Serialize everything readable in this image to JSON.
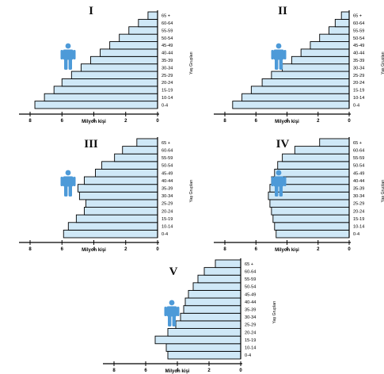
{
  "age_groups": [
    "0-4",
    "10-14",
    "15-19",
    "20-24",
    "25-29",
    "30-34",
    "35-39",
    "40-44",
    "45-49",
    "50-54",
    "55-59",
    "60-64",
    "65 +"
  ],
  "x_ticks": [
    "8",
    "6",
    "4",
    "2",
    "0"
  ],
  "xlabel": "Milyon kişi",
  "ylabel": "Yaş Grupları",
  "bar_color": "#cfe8f7",
  "icon_color": "#4d9ad8",
  "chart_data": [
    {
      "type": "bar",
      "title": "I",
      "orientation": "horizontal",
      "xlim": [
        0,
        8
      ],
      "categories": [
        "0-4",
        "10-14",
        "15-19",
        "20-24",
        "25-29",
        "30-34",
        "35-39",
        "40-44",
        "45-49",
        "50-54",
        "55-59",
        "60-64",
        "65 +"
      ],
      "values": [
        7.7,
        7.1,
        6.5,
        6.0,
        5.4,
        4.8,
        4.2,
        3.6,
        3.0,
        2.4,
        1.8,
        1.2,
        0.6
      ]
    },
    {
      "type": "bar",
      "title": "II",
      "orientation": "horizontal",
      "xlim": [
        0,
        8
      ],
      "categories": [
        "0-4",
        "10-14",
        "15-19",
        "20-24",
        "25-29",
        "30-34",
        "35-39",
        "40-44",
        "45-49",
        "50-54",
        "55-59",
        "60-64",
        "65 +"
      ],
      "values": [
        7.5,
        6.9,
        6.3,
        5.6,
        5.0,
        4.3,
        3.7,
        3.1,
        2.5,
        1.9,
        1.3,
        0.9,
        0.5
      ]
    },
    {
      "type": "bar",
      "title": "III",
      "orientation": "horizontal",
      "xlim": [
        0,
        8
      ],
      "categories": [
        "0-4",
        "10-14",
        "15-19",
        "20-24",
        "25-29",
        "30-34",
        "35-39",
        "40-44",
        "45-49",
        "50-54",
        "55-59",
        "60-64",
        "65 +"
      ],
      "values": [
        5.9,
        5.6,
        5.1,
        4.6,
        4.5,
        4.9,
        5.0,
        4.6,
        3.9,
        3.5,
        2.7,
        2.2,
        1.3
      ]
    },
    {
      "type": "bar",
      "title": "IV",
      "orientation": "horizontal",
      "xlim": [
        0,
        8
      ],
      "categories": [
        "0-4",
        "10-14",
        "15-19",
        "20-24",
        "25-29",
        "30-34",
        "35-39",
        "40-44",
        "45-49",
        "50-54",
        "55-59",
        "60-64",
        "65 +"
      ],
      "values": [
        4.7,
        4.8,
        4.9,
        5.0,
        5.1,
        5.2,
        5.1,
        5.0,
        4.8,
        4.6,
        4.3,
        3.5,
        1.9
      ]
    },
    {
      "type": "bar",
      "title": "V",
      "orientation": "horizontal",
      "xlim": [
        0,
        8
      ],
      "categories": [
        "0-4",
        "10-14",
        "15-19",
        "20-24",
        "25-29",
        "30-34",
        "35-39",
        "40-44",
        "45-49",
        "50-54",
        "55-59",
        "60-64",
        "65 +"
      ],
      "values": [
        4.6,
        4.7,
        5.4,
        4.6,
        4.1,
        3.8,
        3.6,
        3.5,
        3.3,
        3.0,
        2.7,
        2.3,
        1.6
      ]
    }
  ]
}
